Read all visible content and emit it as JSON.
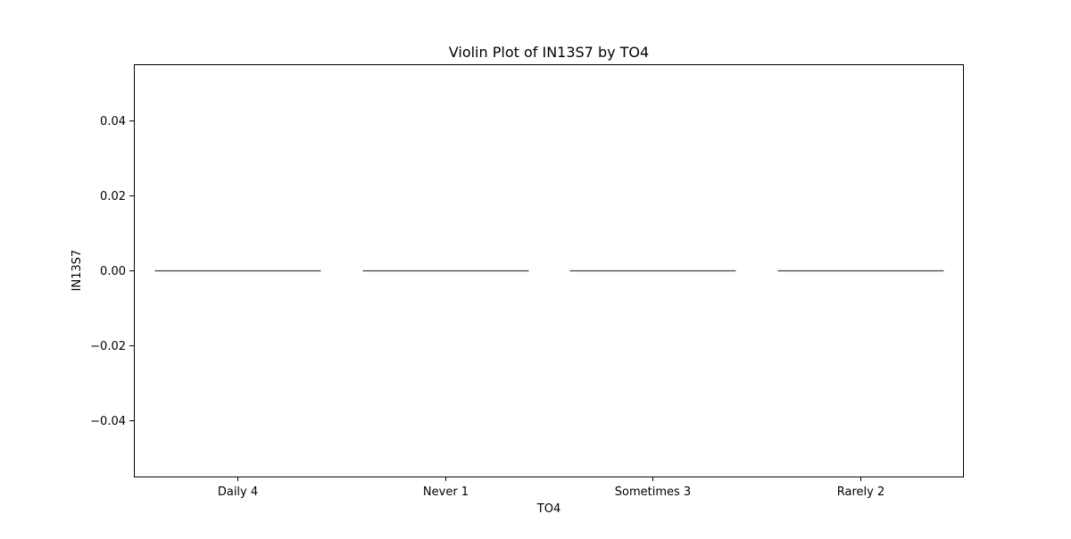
{
  "chart_data": {
    "type": "violin",
    "title": "Violin Plot of IN13S7 by TO4",
    "xlabel": "TO4",
    "ylabel": "IN13S7",
    "categories": [
      "Daily 4",
      "Never 1",
      "Sometimes 3",
      "Rarely 2"
    ],
    "values": [
      0.0,
      0.0,
      0.0,
      0.0
    ],
    "ylim": [
      -0.055,
      0.055
    ],
    "yticks": [
      0.04,
      0.02,
      0.0,
      -0.02,
      -0.04
    ],
    "ytick_labels": [
      "0.04",
      "0.02",
      "0.00",
      "−0.02",
      "−0.04"
    ],
    "grid": false,
    "colors": {
      "line": "#3f3f3f",
      "frame": "#000000"
    }
  }
}
